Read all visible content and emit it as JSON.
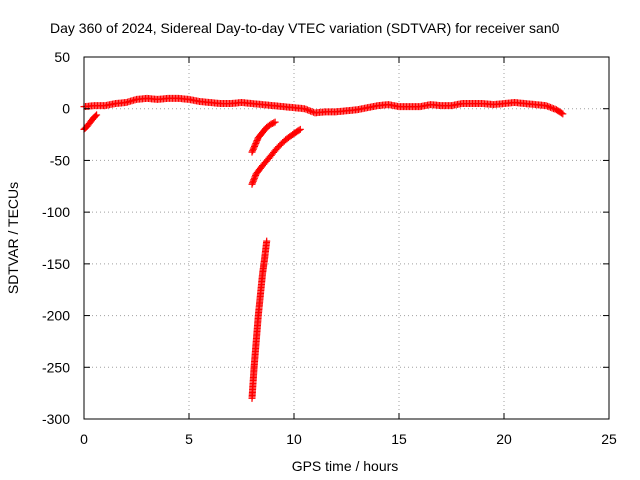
{
  "chart_data": {
    "type": "scatter",
    "title": "Day 360 of 2024, Sidereal Day-to-day VTEC variation (SDTVAR) for receiver san0",
    "xlabel": "GPS time / hours",
    "ylabel": "SDTVAR / TECUs",
    "xlim": [
      0,
      25
    ],
    "ylim": [
      -300,
      50
    ],
    "xticks": [
      "0",
      "5",
      "10",
      "15",
      "20",
      "25"
    ],
    "yticks": [
      "50",
      "0",
      "-50",
      "-100",
      "-150",
      "-200",
      "-250",
      "-300"
    ],
    "grid": true,
    "marker": "+",
    "series": [
      {
        "name": "SDTVAR",
        "color": "#ff0000",
        "segments": [
          {
            "x": [
              0.0,
              0.15,
              0.3,
              0.45,
              0.6
            ],
            "y": [
              -20,
              -17,
              -13,
              -9,
              -6
            ]
          },
          {
            "x": [
              0.0,
              0.5,
              1.0,
              1.5,
              2.0,
              2.5,
              3.0,
              3.5,
              4.0,
              4.5,
              5.0,
              5.5,
              6.0,
              6.5,
              7.0,
              7.5,
              8.0,
              8.5,
              9.0,
              9.5,
              10.0,
              10.5,
              11.0,
              11.5,
              12.0,
              12.5,
              13.0,
              13.5,
              14.0,
              14.5,
              15.0,
              15.5,
              16.0,
              16.5,
              17.0,
              17.5,
              18.0,
              18.5,
              19.0,
              19.5,
              20.0,
              20.5,
              21.0,
              21.5,
              22.0,
              22.5,
              22.8
            ],
            "y": [
              2,
              3,
              3,
              5,
              6,
              9,
              10,
              9,
              10,
              10,
              9,
              7,
              6,
              5,
              5,
              6,
              5,
              4,
              3,
              2,
              1,
              0,
              -4,
              -3,
              -3,
              -2,
              -1,
              1,
              3,
              4,
              2,
              2,
              2,
              4,
              3,
              3,
              5,
              5,
              5,
              4,
              5,
              6,
              5,
              4,
              3,
              -1,
              -5
            ]
          },
          {
            "x": [
              8.0,
              8.15,
              8.3,
              8.5,
              8.7,
              8.9,
              9.1
            ],
            "y": [
              -42,
              -35,
              -28,
              -23,
              -18,
              -15,
              -13
            ]
          },
          {
            "x": [
              8.0,
              8.2,
              8.5,
              8.8,
              9.2,
              9.6,
              10.0,
              10.3
            ],
            "y": [
              -73,
              -63,
              -55,
              -48,
              -38,
              -30,
              -24,
              -20
            ]
          },
          {
            "x": [
              8.0,
              8.1,
              8.2,
              8.3,
              8.4,
              8.5,
              8.6,
              8.7
            ],
            "y": [
              -280,
              -250,
              -225,
              -200,
              -180,
              -160,
              -145,
              -128
            ]
          }
        ]
      }
    ]
  }
}
